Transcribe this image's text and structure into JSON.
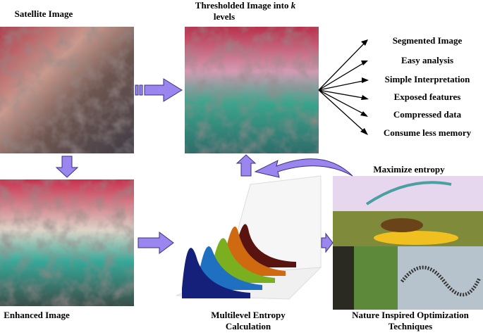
{
  "satellite": "Satellite Image",
  "thresholded": {
    "line1": "Thresholded Image into",
    "variable": "k",
    "line2": "levels"
  },
  "outputs": [
    "Segmented Image",
    "Easy analysis",
    "Simple Interpretation",
    "Exposed features",
    "Compressed data",
    "Consume less memory"
  ],
  "maximize": "Maximize entropy",
  "enhanced": "Enhanced Image",
  "entropy": {
    "line1": "Multilevel Entropy",
    "line2": "Calculation"
  },
  "nature": {
    "line1": "Nature Inspired Optimization",
    "line2": "Techniques"
  }
}
